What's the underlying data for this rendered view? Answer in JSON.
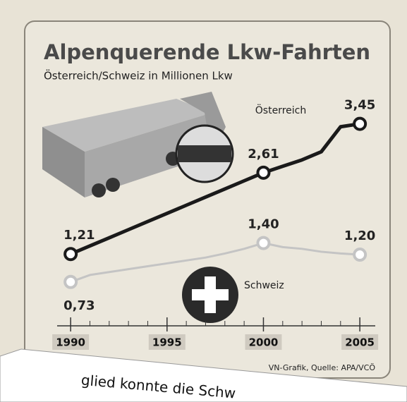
{
  "chart_data": {
    "type": "line",
    "title": "Alpenquerende Lkw-Fahrten",
    "subtitle": "Österreich/Schweiz in Millionen Lkw",
    "source": "VN-Grafik, Quelle: APA/VCÖ",
    "x": [
      1990,
      1991,
      1992,
      1993,
      1994,
      1995,
      1996,
      1997,
      1998,
      1999,
      2000,
      2001,
      2002,
      2003,
      2004,
      2005
    ],
    "xlim": [
      1989.3,
      2005.8
    ],
    "xticks": [
      1990,
      1995,
      2000,
      2005
    ],
    "ylim": [
      0.4,
      3.7
    ],
    "series": [
      {
        "name": "Österreich",
        "color": "#1a1a1a",
        "values": [
          1.21,
          1.35,
          1.49,
          1.63,
          1.77,
          1.91,
          2.05,
          2.19,
          2.33,
          2.47,
          2.61,
          2.72,
          2.83,
          2.97,
          3.4,
          3.45
        ],
        "value_labels": [
          "1,21",
          null,
          null,
          null,
          null,
          null,
          null,
          null,
          null,
          null,
          "2,61",
          null,
          null,
          null,
          null,
          "3,45"
        ]
      },
      {
        "name": "Schweiz",
        "color": "#c4c4c4",
        "values": [
          0.73,
          0.85,
          0.9,
          0.95,
          1.0,
          1.05,
          1.1,
          1.15,
          1.22,
          1.3,
          1.4,
          1.33,
          1.3,
          1.25,
          1.22,
          1.2
        ],
        "value_labels": [
          "0,73",
          null,
          null,
          null,
          null,
          null,
          null,
          null,
          null,
          null,
          "1,40",
          null,
          null,
          null,
          null,
          "1,20"
        ]
      }
    ]
  },
  "overlay_text": "glied konnte die Schw"
}
